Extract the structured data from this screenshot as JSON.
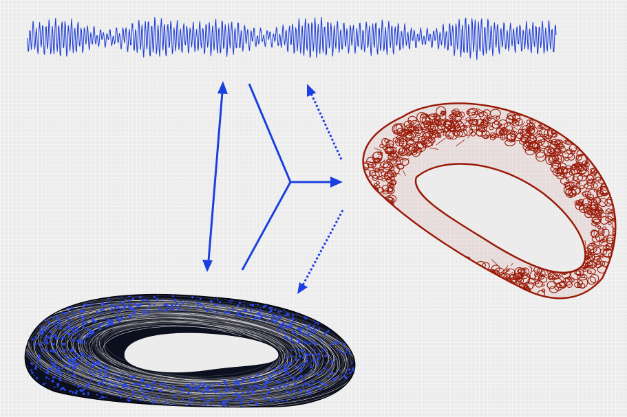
{
  "colors": {
    "signal": "#1f3fd6",
    "arrow": "#1a3fe0",
    "complex": "#9a1a08",
    "attractor_points": "#2b47e6",
    "attractor_lines": "#000000"
  },
  "elements": {
    "time_series": "time-series-signal",
    "reconstructed_attractor": "point-cloud-attractor",
    "simplicial_complex": "wireframe-torus-complex",
    "arrows": [
      "bidirectional-arrow",
      "branching-arrow",
      "dotted-arrow-up",
      "dotted-arrow-down"
    ]
  }
}
